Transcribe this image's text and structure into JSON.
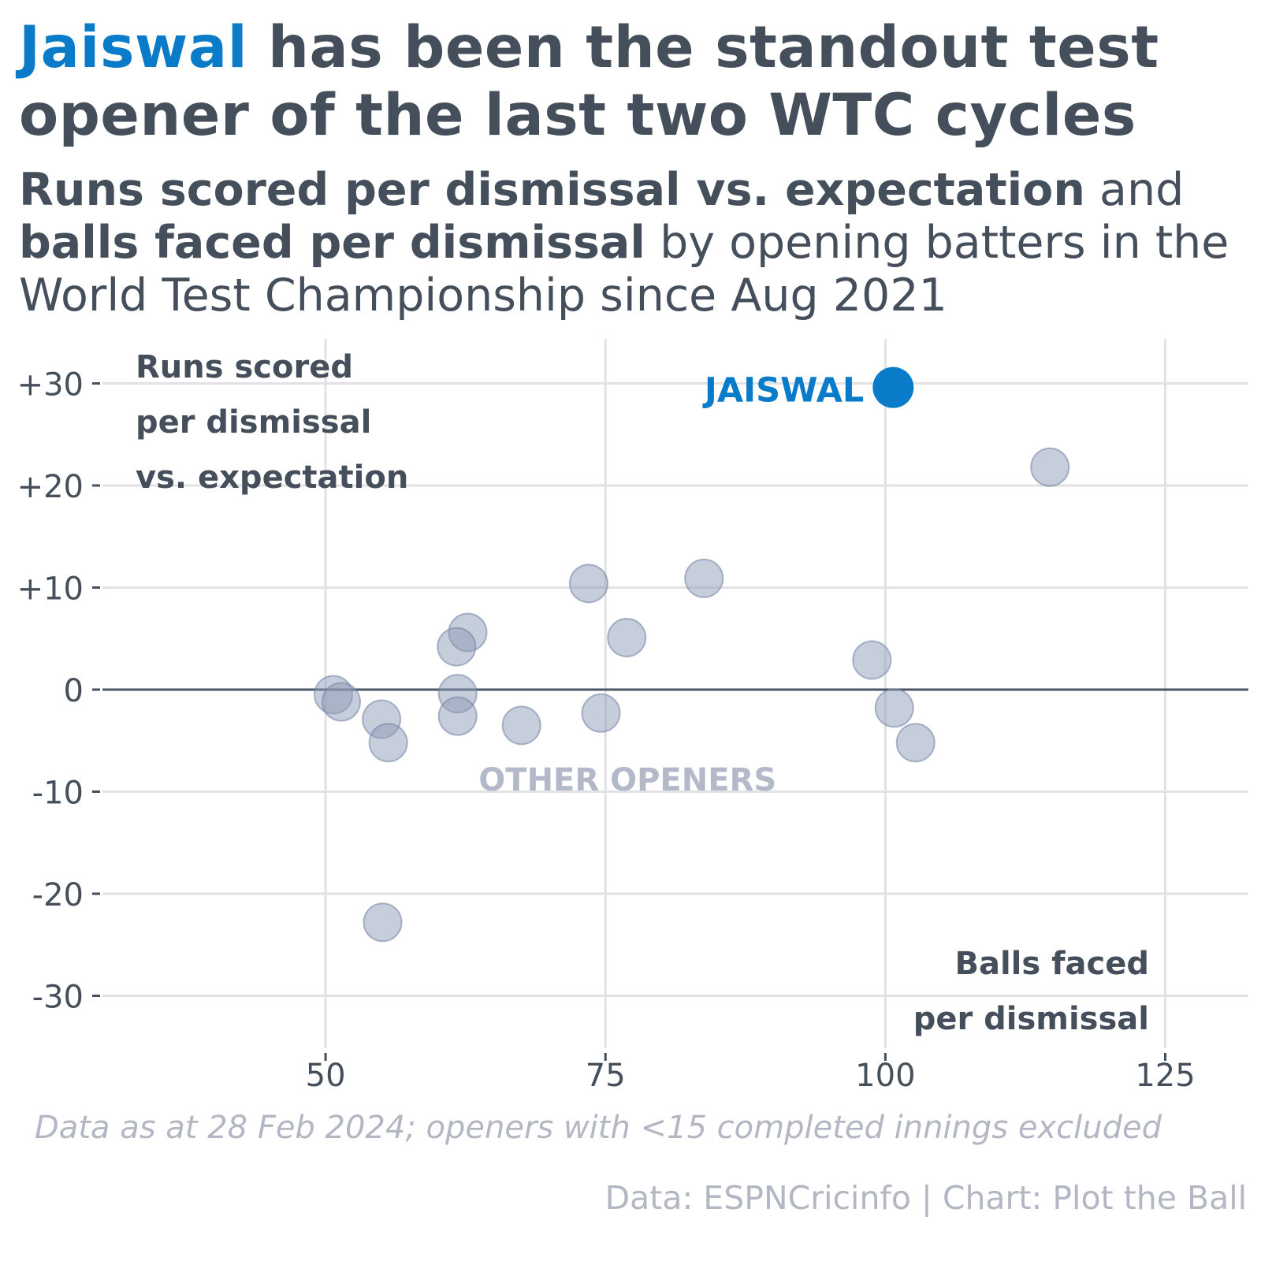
{
  "title": {
    "highlight": "Jaiswal",
    "rest": " has been the standout test opener of the last two WTC cycles"
  },
  "subtitle": {
    "bold1": "Runs scored per dismissal vs. expectation",
    "text1": " and ",
    "bold2": "balls faced per dismissal",
    "text2": " by opening batters in the World Test Championship since Aug 2021"
  },
  "note": "Data as at 28 Feb 2024; openers with <15 completed innings excluded",
  "source": "Data: ESPNCricinfo | Chart: Plot the Ball",
  "colors": {
    "highlight": "#0a7bc8",
    "others": "#8e9bb8",
    "text": "#454f5b",
    "muted": "#b3b7c3"
  },
  "chart_data": {
    "type": "scatter",
    "xlabel": [
      "Balls faced",
      "per dismissal"
    ],
    "ylabel": [
      "Runs scored",
      "per dismissal",
      "vs. expectation"
    ],
    "xlim": [
      30,
      130
    ],
    "ylim": [
      -34,
      34
    ],
    "x_ticks": [
      50,
      75,
      100,
      125
    ],
    "x_tick_labels": [
      "50",
      "75",
      "100",
      "125"
    ],
    "y_ticks": [
      30,
      20,
      10,
      0,
      -10,
      -20,
      -30
    ],
    "y_tick_labels": [
      "+30",
      "+20",
      "+10",
      "0",
      "-10",
      "-20",
      "-30"
    ],
    "grid": true,
    "reference_line_y": 0,
    "highlight": {
      "label": "JAISWAL",
      "x": 100.7,
      "y": 29.6
    },
    "others_label": "OTHER OPENERS",
    "others": [
      {
        "x": 114.7,
        "y": 21.8
      },
      {
        "x": 73.5,
        "y": 10.4
      },
      {
        "x": 83.8,
        "y": 10.9
      },
      {
        "x": 62.7,
        "y": 5.6
      },
      {
        "x": 61.7,
        "y": 4.2
      },
      {
        "x": 76.9,
        "y": 5.1
      },
      {
        "x": 98.8,
        "y": 2.9
      },
      {
        "x": 50.7,
        "y": -0.5
      },
      {
        "x": 51.4,
        "y": -1.2
      },
      {
        "x": 55.0,
        "y": -2.9
      },
      {
        "x": 55.6,
        "y": -5.2
      },
      {
        "x": 61.8,
        "y": -0.4
      },
      {
        "x": 61.8,
        "y": -2.6
      },
      {
        "x": 67.5,
        "y": -3.5
      },
      {
        "x": 74.6,
        "y": -2.3
      },
      {
        "x": 100.8,
        "y": -1.8
      },
      {
        "x": 102.7,
        "y": -5.2
      },
      {
        "x": 55.1,
        "y": -22.8
      }
    ]
  }
}
